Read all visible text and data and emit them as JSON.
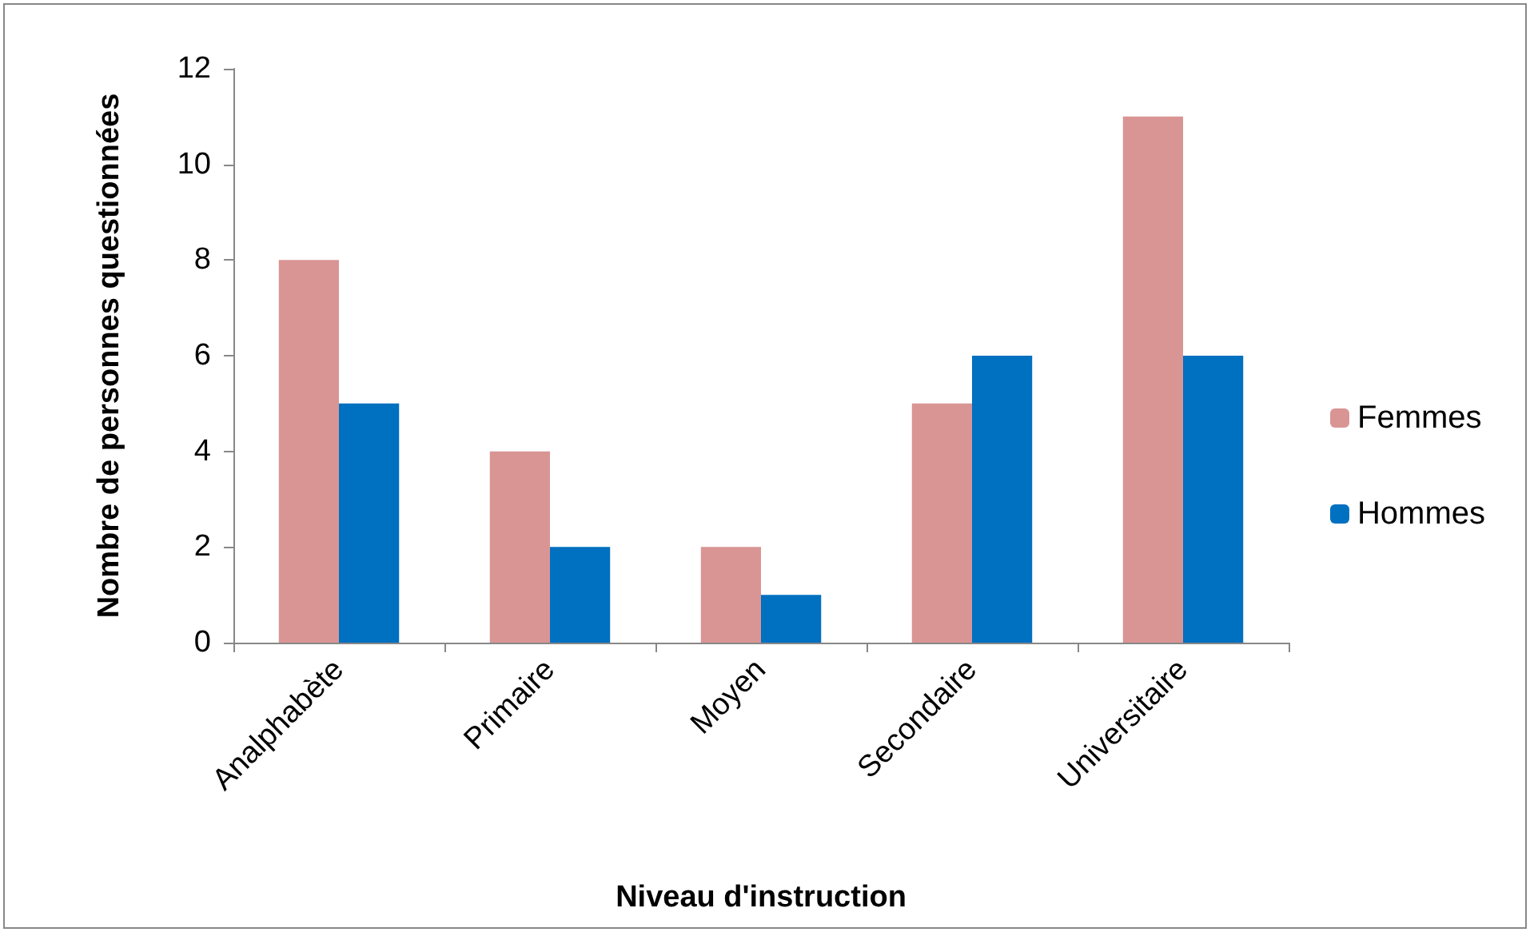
{
  "chart_data": {
    "type": "bar",
    "xlabel": "Niveau d'instruction",
    "ylabel": "Nombre de personnes questionnées",
    "categories": [
      "Analphabète",
      "Primaire",
      "Moyen",
      "Secondaire",
      "Universitaire"
    ],
    "series": [
      {
        "name": "Femmes",
        "color": "#d99594",
        "values": [
          8,
          4,
          2,
          5,
          11
        ]
      },
      {
        "name": "Hommes",
        "color": "#0070c0",
        "values": [
          5,
          2,
          1,
          6,
          6
        ]
      }
    ],
    "ylim": [
      0,
      12
    ],
    "yticks": [
      0,
      2,
      4,
      6,
      8,
      10,
      12
    ],
    "grid": false,
    "legend": "right"
  }
}
